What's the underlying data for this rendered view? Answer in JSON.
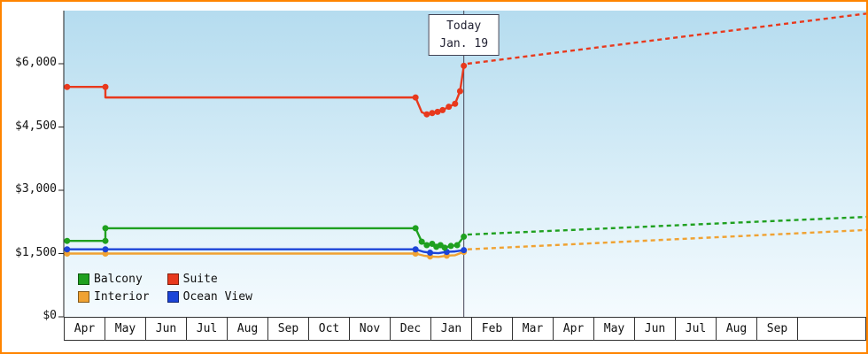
{
  "frame": {
    "border_color": "#ff8400"
  },
  "today": {
    "line1": "Today",
    "line2": "Jan. 19"
  },
  "y_axis": {
    "tick_labels": [
      "$0",
      "$1,500",
      "$3,000",
      "$4,500",
      "$6,000"
    ],
    "tick_values": [
      0,
      1500,
      3000,
      4500,
      6000
    ]
  },
  "x_axis": {
    "months": [
      "Apr",
      "May",
      "Jun",
      "Jul",
      "Aug",
      "Sep",
      "Oct",
      "Nov",
      "Dec",
      "Jan",
      "Feb",
      "Mar",
      "Apr",
      "May",
      "Jun",
      "Jul",
      "Aug",
      "Sep"
    ]
  },
  "legend": {
    "items": [
      {
        "label": "Balcony",
        "color": "#1fa01f"
      },
      {
        "label": "Suite",
        "color": "#e8391d"
      },
      {
        "label": "Interior",
        "color": "#f0a232"
      },
      {
        "label": "Ocean View",
        "color": "#1c44d8"
      }
    ]
  },
  "chart_data": {
    "type": "line",
    "title": "Cruise cabin price history by category with projection after today",
    "x_unit": "months from first Apr tick; fractional part = day within month",
    "today_x": 9.61,
    "today_label": "Today Jan. 19",
    "ylim": [
      0,
      7500
    ],
    "xlim": [
      0,
      19.3
    ],
    "grid": false,
    "legend_position": "bottom-left inside plot",
    "series": [
      {
        "name": "Interior",
        "color": "#f0a232",
        "solid": [
          [
            0.08,
            1500
          ],
          [
            1.0,
            1500
          ],
          [
            8.45,
            1500
          ],
          [
            8.65,
            1450
          ],
          [
            8.8,
            1430
          ],
          [
            9.0,
            1420
          ],
          [
            9.2,
            1450
          ],
          [
            9.4,
            1460
          ],
          [
            9.61,
            1540
          ]
        ],
        "markers": [
          [
            0.08,
            1500
          ],
          [
            1.0,
            1500
          ],
          [
            8.45,
            1500
          ],
          [
            8.8,
            1430
          ],
          [
            9.2,
            1450
          ],
          [
            9.61,
            1540
          ]
        ],
        "dashed": [
          [
            9.7,
            1600
          ],
          [
            19.3,
            2060
          ]
        ]
      },
      {
        "name": "Ocean View",
        "color": "#1c44d8",
        "solid": [
          [
            0.08,
            1600
          ],
          [
            1.0,
            1600
          ],
          [
            8.45,
            1600
          ],
          [
            8.65,
            1540
          ],
          [
            8.8,
            1520
          ],
          [
            9.0,
            1510
          ],
          [
            9.2,
            1540
          ],
          [
            9.4,
            1550
          ],
          [
            9.61,
            1580
          ]
        ],
        "markers": [
          [
            0.08,
            1600
          ],
          [
            1.0,
            1600
          ],
          [
            8.45,
            1600
          ],
          [
            8.8,
            1520
          ],
          [
            9.2,
            1540
          ],
          [
            9.61,
            1580
          ]
        ],
        "dashed": []
      },
      {
        "name": "Balcony",
        "color": "#1fa01f",
        "solid": [
          [
            0.08,
            1800
          ],
          [
            1.0,
            1800
          ],
          [
            1.0,
            2100
          ],
          [
            8.45,
            2100
          ],
          [
            8.6,
            1780
          ],
          [
            8.72,
            1700
          ],
          [
            8.85,
            1730
          ],
          [
            8.95,
            1660
          ],
          [
            9.05,
            1700
          ],
          [
            9.15,
            1640
          ],
          [
            9.3,
            1680
          ],
          [
            9.45,
            1700
          ],
          [
            9.61,
            1900
          ]
        ],
        "markers": [
          [
            0.08,
            1800
          ],
          [
            1.0,
            1800
          ],
          [
            1.0,
            2100
          ],
          [
            8.45,
            2100
          ],
          [
            8.6,
            1780
          ],
          [
            8.72,
            1700
          ],
          [
            8.85,
            1730
          ],
          [
            8.95,
            1660
          ],
          [
            9.05,
            1700
          ],
          [
            9.15,
            1640
          ],
          [
            9.3,
            1680
          ],
          [
            9.45,
            1700
          ],
          [
            9.61,
            1900
          ]
        ],
        "dashed": [
          [
            9.7,
            1950
          ],
          [
            19.3,
            2370
          ]
        ]
      },
      {
        "name": "Suite",
        "color": "#e8391d",
        "solid": [
          [
            0.08,
            5450
          ],
          [
            1.0,
            5450
          ],
          [
            1.0,
            5200
          ],
          [
            8.45,
            5200
          ],
          [
            8.6,
            4850
          ],
          [
            8.72,
            4800
          ],
          [
            8.85,
            4830
          ],
          [
            8.98,
            4860
          ],
          [
            9.1,
            4900
          ],
          [
            9.25,
            4980
          ],
          [
            9.4,
            5050
          ],
          [
            9.52,
            5350
          ],
          [
            9.61,
            5950
          ]
        ],
        "markers": [
          [
            0.08,
            5450
          ],
          [
            1.0,
            5450
          ],
          [
            8.45,
            5200
          ],
          [
            8.72,
            4800
          ],
          [
            8.85,
            4830
          ],
          [
            8.98,
            4860
          ],
          [
            9.1,
            4900
          ],
          [
            9.25,
            4980
          ],
          [
            9.4,
            5050
          ],
          [
            9.52,
            5350
          ],
          [
            9.61,
            5950
          ]
        ],
        "dashed": [
          [
            9.7,
            6000
          ],
          [
            19.3,
            7190
          ]
        ]
      }
    ]
  }
}
